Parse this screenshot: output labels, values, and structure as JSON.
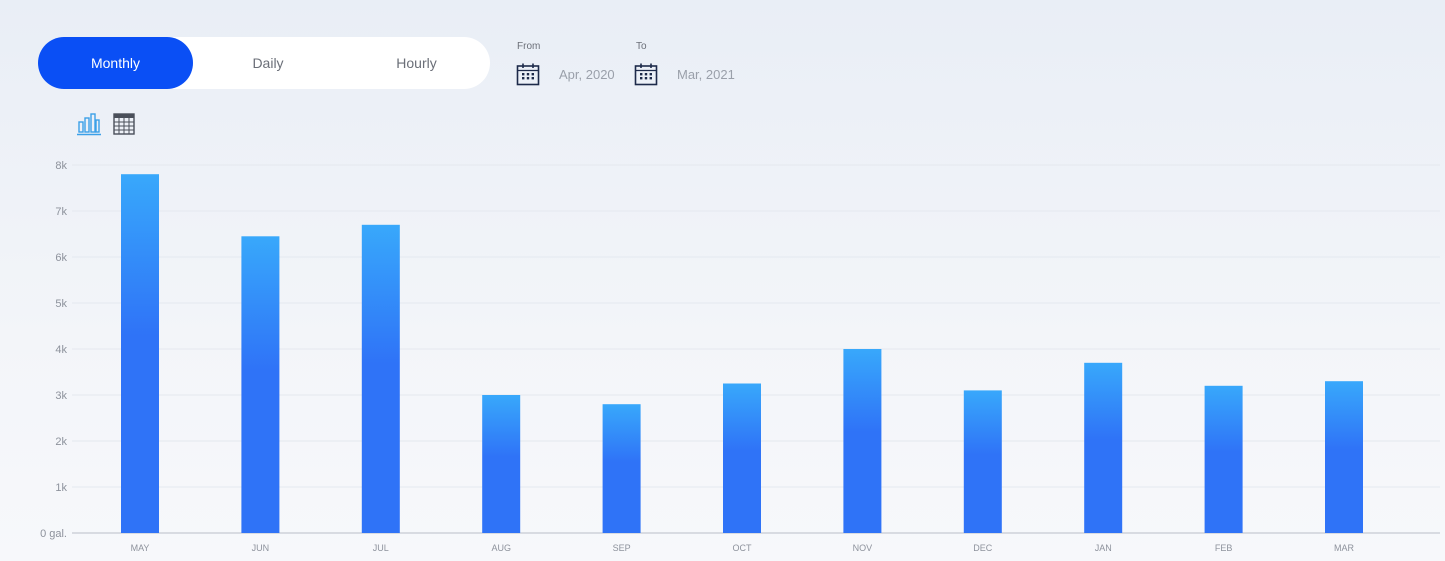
{
  "tabs": [
    {
      "label": "Monthly",
      "active": true
    },
    {
      "label": "Daily",
      "active": false
    },
    {
      "label": "Hourly",
      "active": false
    }
  ],
  "date_range": {
    "from_label": "From",
    "to_label": "To",
    "from_value": "Apr, 2020",
    "to_value": "Mar, 2021"
  },
  "view_toggle": {
    "chart_icon": "bar-chart-icon",
    "table_icon": "table-icon",
    "active": "chart"
  },
  "colors": {
    "accent": "#0a4ff5",
    "bar_top": "#38a8fb",
    "bar_bottom": "#2f73f7",
    "chart_icon": "#3ba0e8"
  },
  "chart_data": {
    "type": "bar",
    "categories": [
      "MAY",
      "JUN",
      "JUL",
      "AUG",
      "SEP",
      "OCT",
      "NOV",
      "DEC",
      "JAN",
      "FEB",
      "MAR"
    ],
    "values": [
      7800,
      6450,
      6700,
      3000,
      2800,
      3250,
      4000,
      3100,
      3700,
      3200,
      3300
    ],
    "y_ticks": [
      "0 gal.",
      "1k",
      "2k",
      "3k",
      "4k",
      "5k",
      "6k",
      "7k",
      "8k"
    ],
    "ylim": [
      0,
      8000
    ],
    "grid": true
  }
}
